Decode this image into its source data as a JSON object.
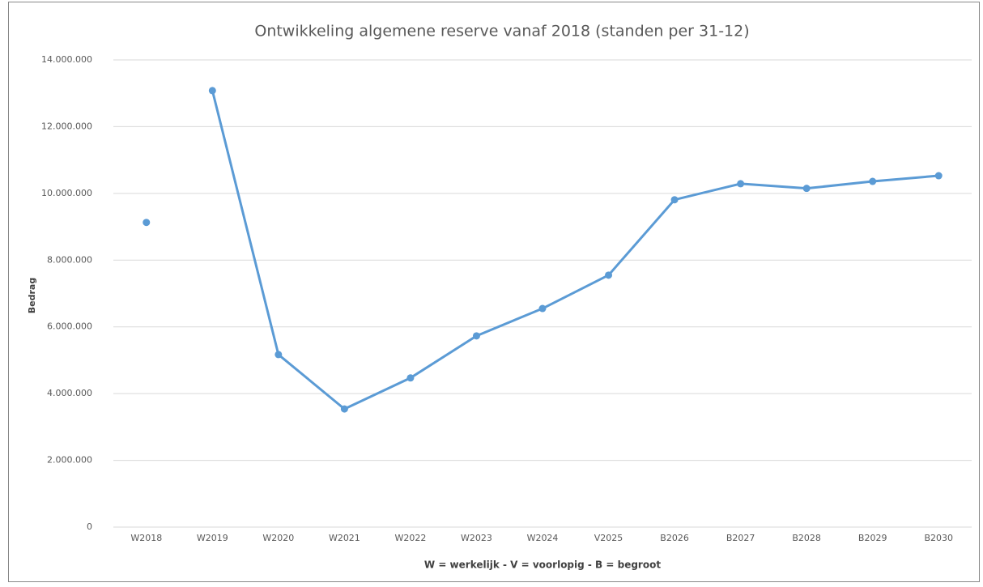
{
  "chart_data": {
    "type": "line",
    "title": "Ontwikkeling algemene reserve vanaf 2018 (standen per 31-12)",
    "x_label": "W = werkelijk - V = voorlopig - B = begroot",
    "y_label": "Bedrag",
    "categories": [
      "W2018",
      "W2019",
      "W2020",
      "W2021",
      "W2022",
      "W2023",
      "W2024",
      "V2025",
      "B2026",
      "B2027",
      "B2028",
      "B2029",
      "B2030"
    ],
    "series": [
      {
        "color": "#5b9bd5",
        "values": [
          9130000,
          null,
          null,
          null,
          null,
          null,
          null,
          null,
          null,
          null,
          null,
          null,
          null
        ]
      },
      {
        "color": "#5b9bd5",
        "values": [
          null,
          13080000,
          5170000,
          3540000,
          4470000,
          5730000,
          6550000,
          7550000,
          9810000,
          10290000,
          10150000,
          10360000,
          10530000
        ]
      }
    ],
    "ylim": [
      0,
      14000000
    ],
    "yticks": [
      0,
      {
        "value": 2000000,
        "label": "2.000.000"
      },
      {
        "value": 4000000,
        "label": "4.000.000"
      },
      {
        "value": 6000000,
        "label": "6.000.000"
      },
      {
        "value": 8000000,
        "label": "8.000.000"
      },
      {
        "value": 10000000,
        "label": "10.000.000"
      },
      {
        "value": 12000000,
        "label": "12.000.000"
      },
      {
        "value": 14000000,
        "label": "14.000.000"
      }
    ],
    "grid": true
  }
}
